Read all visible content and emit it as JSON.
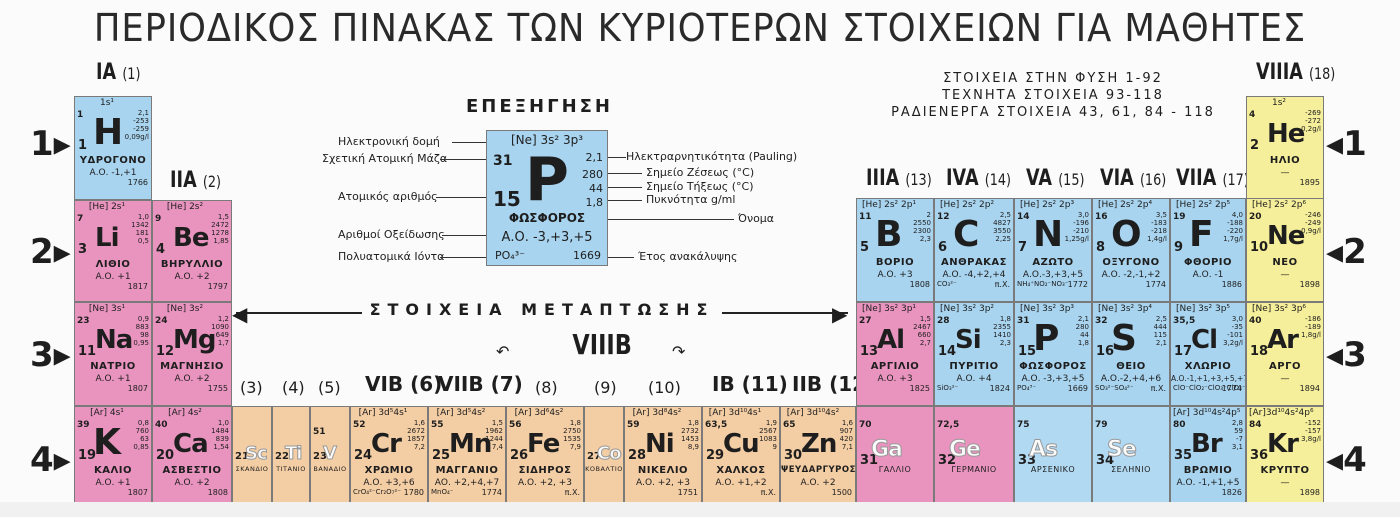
{
  "title": "ΠΕΡΙΟΔΙΚΟΣ ΠΙΝΑΚΑΣ ΤΩΝ ΚΥΡΙΟΤΕΡΩΝ ΣΤΟΙΧΕΙΩΝ ΓΙΑ ΜΑΘΗΤΕΣ",
  "groups": {
    "g1": "IA",
    "g1n": "(1)",
    "g2": "IIA",
    "g2n": "(2)",
    "g13": "IIIA",
    "g13n": "(13)",
    "g14": "IVA",
    "g14n": "(14)",
    "g15": "VA",
    "g15n": "(15)",
    "g16": "VIA",
    "g16n": "(16)",
    "g17": "VIIA",
    "g17n": "(17)",
    "g18": "VIIIA",
    "g18n": "(18)",
    "d3": "(3)",
    "d4": "(4)",
    "d5": "(5)",
    "d6": "VIB (6)",
    "d7": "VIIB (7)",
    "d8": "(8)",
    "d9": "(9)",
    "d10": "(10)",
    "d11": "IB (11)",
    "d12": "IIB (12)"
  },
  "periods": [
    "1",
    "2",
    "3",
    "4"
  ],
  "legend": {
    "heading": "ΕΠΕΞΗΓΗΣΗ",
    "config": "[Ne] 3s² 3p³",
    "mass": "31",
    "number": "15",
    "symbol": "P",
    "en": "2,1",
    "mp": "280",
    "bp": "44",
    "density": "1,8",
    "name": "ΦΩΣΦΟΡΟΣ",
    "ox": "Α.Ο. -3,+3,+5",
    "ion": "PO₄³⁻",
    "year": "1669",
    "l_config": "Ηλεκτρονική δομή",
    "l_mass": "Σχετική Ατομική Μάζα",
    "l_number": "Ατομικός αριθμός",
    "l_ox": "Αριθμοί Οξείδωσης",
    "l_ion": "Πολυατομικά Ιόντα",
    "l_en": "Ηλεκτραρνητικότητα (Pauling)",
    "l_mp": "Σημείο Ζέσεως (°C)",
    "l_bp": "Σημείο Τήξεως (°C)",
    "l_density": "Πυκνότητα g/ml",
    "l_name": "Όνομα",
    "l_year": "Έτος ανακάλυψης"
  },
  "nature": {
    "line1": "ΣΤΟΙΧΕΙΑ ΣΤΗΝ ΦΥΣΗ 1-92",
    "line2": "ΤΕΧΝΗΤΑ ΣΤΟΙΧΕΙΑ 93-118",
    "line3": "ΡΑΔΙΕΝΕΡΓΑ ΣΤΟΙΧΕΙΑ 43, 61, 84 - 118"
  },
  "transition_label": "ΣΤΟΙΧΕΙΑ ΜΕΤΑΠΤΩΣΗΣ",
  "viiib_label": "VIIIB",
  "elements": [
    {
      "id": "H",
      "cfg": "1s¹",
      "mass": "1",
      "num": "1",
      "sym": "H",
      "props": "2,1\n-253\n-259\n0,09g/l",
      "name": "ΥΔΡΟΓΟΝΟ",
      "ox": "Α.Ο. -1,+1",
      "year": "1766"
    },
    {
      "id": "He",
      "cfg": "1s²",
      "mass": "4",
      "num": "2",
      "sym": "He",
      "props": "-269\n-272\n0,2g/l",
      "name": "ΗΛΙΟ",
      "ox": "—",
      "year": "1895"
    },
    {
      "id": "Li",
      "cfg": "[He] 2s¹",
      "mass": "7",
      "num": "3",
      "sym": "Li",
      "props": "1,0\n1342\n181\n0,5",
      "name": "ΛΙΘΙΟ",
      "ox": "Α.Ο. +1",
      "year": "1817"
    },
    {
      "id": "Be",
      "cfg": "[He] 2s²",
      "mass": "9",
      "num": "4",
      "sym": "Be",
      "props": "1,5\n2472\n1278\n1,85",
      "name": "ΒΗΡΥΛΛΙΟ",
      "ox": "Α.Ο. +2",
      "year": "1797"
    },
    {
      "id": "B",
      "cfg": "[He] 2s² 2p¹",
      "mass": "11",
      "num": "5",
      "sym": "B",
      "props": "2\n2550\n2300\n2,3",
      "name": "ΒΟΡΙΟ",
      "ox": "Α.Ο. +3",
      "year": "1808"
    },
    {
      "id": "C",
      "cfg": "[He] 2s² 2p²",
      "mass": "12",
      "num": "6",
      "sym": "C",
      "props": "2,5\n4827\n3550\n2,25",
      "name": "ΑΝΘΡΑΚΑΣ",
      "ox": "Α.Ο. -4,+2,+4",
      "extra": "CO₃²⁻",
      "year": "π.Χ."
    },
    {
      "id": "N",
      "cfg": "[He] 2s² 2p³",
      "mass": "14",
      "num": "7",
      "sym": "N",
      "props": "3,0\n-196\n-210\n1,25g/l",
      "name": "ΑΖΩΤΟ",
      "ox": "Α.Ο.-3,+3,+5",
      "extra": "NH₄⁺NO₂⁻NO₃⁻",
      "year": "1772"
    },
    {
      "id": "O",
      "cfg": "[He] 2s² 2p⁴",
      "mass": "16",
      "num": "8",
      "sym": "O",
      "props": "3,5\n-183\n-218\n1,4g/l",
      "name": "ΟΞΥΓΟΝΟ",
      "ox": "Α.Ο. -2,-1,+2",
      "year": "1774"
    },
    {
      "id": "F",
      "cfg": "[He] 2s² 2p⁵",
      "mass": "19",
      "num": "9",
      "sym": "F",
      "props": "4,0\n-188\n-220\n1,7g/l",
      "name": "ΦΘΟΡΙΟ",
      "ox": "Α.Ο. -1",
      "year": "1886"
    },
    {
      "id": "Ne",
      "cfg": "[He] 2s² 2p⁶",
      "mass": "20",
      "num": "10",
      "sym": "Ne",
      "props": "-246\n-249\n0,9g/l",
      "name": "ΝΕΟ",
      "ox": "—",
      "year": "1898"
    },
    {
      "id": "Na",
      "cfg": "[Ne] 3s¹",
      "mass": "23",
      "num": "11",
      "sym": "Na",
      "props": "0,9\n883\n98\n0,95",
      "name": "ΝΑΤΡΙΟ",
      "ox": "Α.Ο. +1",
      "year": "1807"
    },
    {
      "id": "Mg",
      "cfg": "[Ne] 3s²",
      "mass": "24",
      "num": "12",
      "sym": "Mg",
      "props": "1,2\n1090\n649\n1,7",
      "name": "ΜΑΓΝΗΣΙΟ",
      "ox": "Α.Ο. +2",
      "year": "1755"
    },
    {
      "id": "Al",
      "cfg": "[Ne] 3s² 3p¹",
      "mass": "27",
      "num": "13",
      "sym": "Al",
      "props": "1,5\n2467\n660\n2,7",
      "name": "ΑΡΓΙΛΙΟ",
      "ox": "Α.Ο. +3",
      "year": "1825"
    },
    {
      "id": "Si",
      "cfg": "[Ne] 3s² 3p²",
      "mass": "28",
      "num": "14",
      "sym": "Si",
      "props": "1,8\n2355\n1410\n2,3",
      "name": "ΠΥΡΙΤΙΟ",
      "ox": "Α.Ο. +4",
      "extra": "SiO₃²⁻",
      "year": "1824"
    },
    {
      "id": "P",
      "cfg": "[Ne] 3s² 3p³",
      "mass": "31",
      "num": "15",
      "sym": "P",
      "props": "2,1\n280\n44\n1,8",
      "name": "ΦΩΣΦΟΡΟΣ",
      "ox": "Α.Ο. -3,+3,+5",
      "extra": "PO₄³⁻",
      "year": "1669"
    },
    {
      "id": "S",
      "cfg": "[Ne] 3s² 3p⁴",
      "mass": "32",
      "num": "16",
      "sym": "S",
      "props": "2,5\n444\n115\n2,1",
      "name": "ΘΕΙΟ",
      "ox": "Α.Ο.-2,+4,+6",
      "extra": "SO₃²⁻SO₄²⁻",
      "year": "π.Χ."
    },
    {
      "id": "Cl",
      "cfg": "[Ne] 3s² 3p⁵",
      "mass": "35,5",
      "num": "17",
      "sym": "Cl",
      "props": "3,0\n-35\n-101\n3,2g/l",
      "name": "ΧΛΩΡΙΟ",
      "ox": "Α.Ο.-1,+1,+3,+5,+7",
      "extra": "ClO⁻ClO₂⁻ClO₃⁻ClO₄⁻",
      "year": "1774"
    },
    {
      "id": "Ar",
      "cfg": "[Ne] 3s² 3p⁶",
      "mass": "40",
      "num": "18",
      "sym": "Ar",
      "props": "-186\n-189\n1,8g/l",
      "name": "ΑΡΓΟ",
      "ox": "—",
      "year": "1894"
    },
    {
      "id": "K",
      "cfg": "[Ar] 4s¹",
      "mass": "39",
      "num": "19",
      "sym": "K",
      "props": "0,8\n760\n63\n0,85",
      "name": "ΚΑΛΙΟ",
      "ox": "Α.Ο. +1",
      "year": "1807"
    },
    {
      "id": "Ca",
      "cfg": "[Ar] 4s²",
      "mass": "40",
      "num": "20",
      "sym": "Ca",
      "props": "1,0\n1484\n839\n1,54",
      "name": "ΑΣΒΕΣΤΙΟ",
      "ox": "Α.Ο. +2",
      "year": "1808"
    },
    {
      "id": "Sc",
      "num": "21",
      "sym": "Sc",
      "name": "ΣΚΑΝΔΙΟ"
    },
    {
      "id": "Ti",
      "num": "22",
      "sym": "Ti",
      "name": "ΤΙΤΑΝΙΟ"
    },
    {
      "id": "V",
      "num": "23",
      "sym": "V",
      "name": "ΒΑΝΑΔΙΟ",
      "mass": "51"
    },
    {
      "id": "Cr",
      "cfg": "[Ar] 3d⁵4s¹",
      "mass": "52",
      "num": "24",
      "sym": "Cr",
      "props": "1,6\n2672\n1857\n7,2",
      "name": "ΧΡΩΜΙΟ",
      "ox": "Α.Ο. +3,+6",
      "extra": "CrO₄²⁻Cr₂O₇²⁻",
      "year": "1780"
    },
    {
      "id": "Mn",
      "cfg": "[Ar] 3d⁵4s²",
      "mass": "55",
      "num": "25",
      "sym": "Mn",
      "props": "1,5\n1962\n1244\n7,4",
      "name": "ΜΑΓΓΑΝΙΟ",
      "ox": "ΑΟ. +2,+4,+7",
      "extra": "MnO₄⁻",
      "year": "1774"
    },
    {
      "id": "Fe",
      "cfg": "[Ar] 3d⁶4s²",
      "mass": "56",
      "num": "26",
      "sym": "Fe",
      "props": "1,8\n2750\n1535\n7,9",
      "name": "ΣΙΔΗΡΟΣ",
      "ox": "Α.Ο. +2, +3",
      "year": "π.Χ."
    },
    {
      "id": "Co",
      "num": "27",
      "sym": "Co",
      "name": "ΚΟΒΑΛΤΙΟ"
    },
    {
      "id": "Ni",
      "cfg": "[Ar] 3d⁸4s²",
      "mass": "59",
      "num": "28",
      "sym": "Ni",
      "props": "1,8\n2732\n1453\n8,9",
      "name": "ΝΙΚΕΛΙΟ",
      "ox": "Α.Ο. +2, +3",
      "year": "1751"
    },
    {
      "id": "Cu",
      "cfg": "[Ar] 3d¹⁰4s¹",
      "mass": "63,5",
      "num": "29",
      "sym": "Cu",
      "props": "1,9\n2567\n1083\n9",
      "name": "ΧΑΛΚΟΣ",
      "ox": "Α.Ο. +1,+2",
      "year": "π.Χ."
    },
    {
      "id": "Zn",
      "cfg": "[Ar] 3d¹⁰4s²",
      "mass": "65",
      "num": "30",
      "sym": "Zn",
      "props": "1,6\n907\n420\n7,1",
      "name": "ΨΕΥΔΑΡΓΥΡΟΣ",
      "ox": "Α.Ο. +2",
      "year": "1500"
    },
    {
      "id": "Ga",
      "mass": "70",
      "num": "31",
      "sym": "Ga",
      "name": "ΓΑΛΛΙΟ"
    },
    {
      "id": "Ge",
      "mass": "72,5",
      "num": "32",
      "sym": "Ge",
      "name": "ΓΕΡΜΑΝΙΟ"
    },
    {
      "id": "As",
      "mass": "75",
      "num": "33",
      "sym": "As",
      "name": "ΑΡΣΕΝΙΚΟ"
    },
    {
      "id": "Se",
      "mass": "79",
      "num": "34",
      "sym": "Se",
      "name": "ΣΕΛΗΝΙΟ"
    },
    {
      "id": "Br",
      "cfg": "[Ar] 3d¹⁰4s²4p⁵",
      "mass": "80",
      "num": "35",
      "sym": "Br",
      "props": "2,8\n59\n-7\n3,1",
      "name": "ΒΡΩΜΙΟ",
      "ox": "Α.Ο. -1,+1,+5",
      "year": "1826"
    },
    {
      "id": "Kr",
      "cfg": "[Ar]3d¹⁰4s²4p⁶",
      "mass": "84",
      "num": "36",
      "sym": "Kr",
      "props": "-152\n-157\n3,8g/l",
      "name": "ΚΡΥΠΤΟ",
      "ox": "—",
      "year": "1898"
    }
  ],
  "colors": {
    "s_block": "#e994bf",
    "d_block": "#f3cda4",
    "p_block": "#a8d4ef",
    "noble": "#f5ee9a"
  }
}
